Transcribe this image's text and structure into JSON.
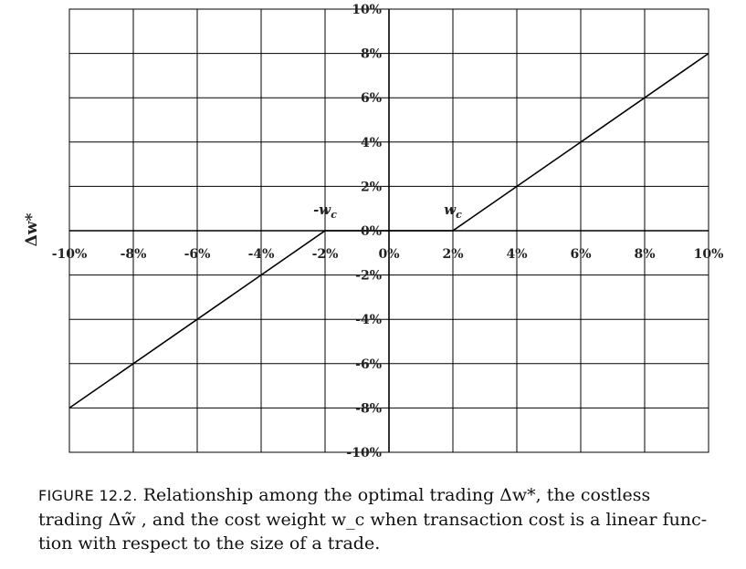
{
  "chart_data": {
    "type": "line",
    "ylabel": "Δw*",
    "xlabel": "",
    "xlim": [
      -10,
      10
    ],
    "ylim": [
      -10,
      10
    ],
    "grid": true,
    "x_tick_labels": [
      "-10%",
      "-8%",
      "-6%",
      "-4%",
      "-2%",
      "0%",
      "2%",
      "4%",
      "6%",
      "8%",
      "10%"
    ],
    "y_tick_labels": [
      "10%",
      "8%",
      "6%",
      "4%",
      "2%",
      "0%",
      "-2%",
      "-4%",
      "-6%",
      "-8%",
      "-10%"
    ],
    "series": [
      {
        "x": [
          -10,
          -2,
          2,
          10
        ],
        "y": [
          -8,
          0,
          0,
          8
        ]
      }
    ],
    "annotations": [
      {
        "text": "-w",
        "sub": "c",
        "x": -2,
        "y": 0
      },
      {
        "text": "w",
        "sub": "c",
        "x": 2,
        "y": 0
      }
    ]
  },
  "caption": {
    "label": "FIGURE 12.2.",
    "lines": [
      "Relationship among the optimal trading Δw*, the costless",
      "trading Δw̃ , and the cost weight w_c when transaction cost is a linear func-",
      "tion with respect to the size of a trade."
    ]
  }
}
